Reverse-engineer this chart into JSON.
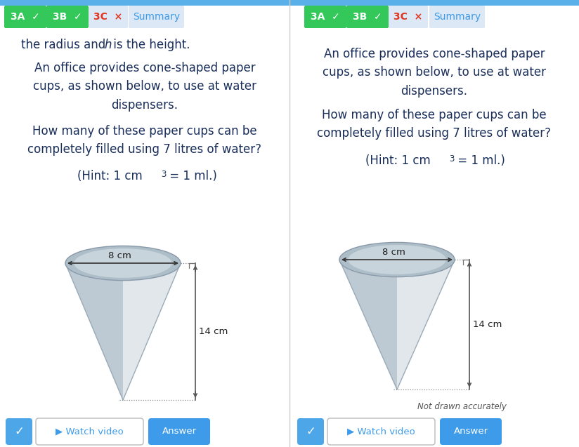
{
  "bg_color": "#ffffff",
  "tab_green_color": "#34c759",
  "tab_red_text": "#e0341e",
  "tab_blue_text": "#3d9be9",
  "tab_light_bg": "#dce8f5",
  "header_bar_color": "#5ab0e8",
  "text_color_dark": "#1a2e5a",
  "text_left_line1a": "the radius and ",
  "text_left_line1b": " is the height.",
  "text_left_para1": "An office provides cone-shaped paper\ncups, as shown below, to use at water\ndispensers.",
  "text_left_para2": "How many of these paper cups can be\ncompletely filled using 7 litres of water?",
  "text_left_hint": "(Hint: 1 cm³ = 1 ml.)",
  "text_right_para1": "An office provides cone-shaped paper\ncups, as shown below, to use at water\ndispensers.",
  "text_right_para2": "How many of these paper cups can be\ncompletely filled using 7 litres of water?",
  "text_right_hint": "(Hint: 1 cm³ = 1 ml.)",
  "cone_radius_label": "8 cm",
  "cone_height_label": "14 cm",
  "not_drawn": "Not drawn accurately",
  "divider_color": "#cccccc",
  "cone_fill_main": "#d4dce4",
  "cone_fill_right": "#e8ecf0",
  "cone_fill_left": "#b0bec8",
  "cone_top_fill": "#adbec8",
  "cone_top_inner": "#beccD4",
  "arrow_color": "#555555",
  "dot_color": "#888888"
}
